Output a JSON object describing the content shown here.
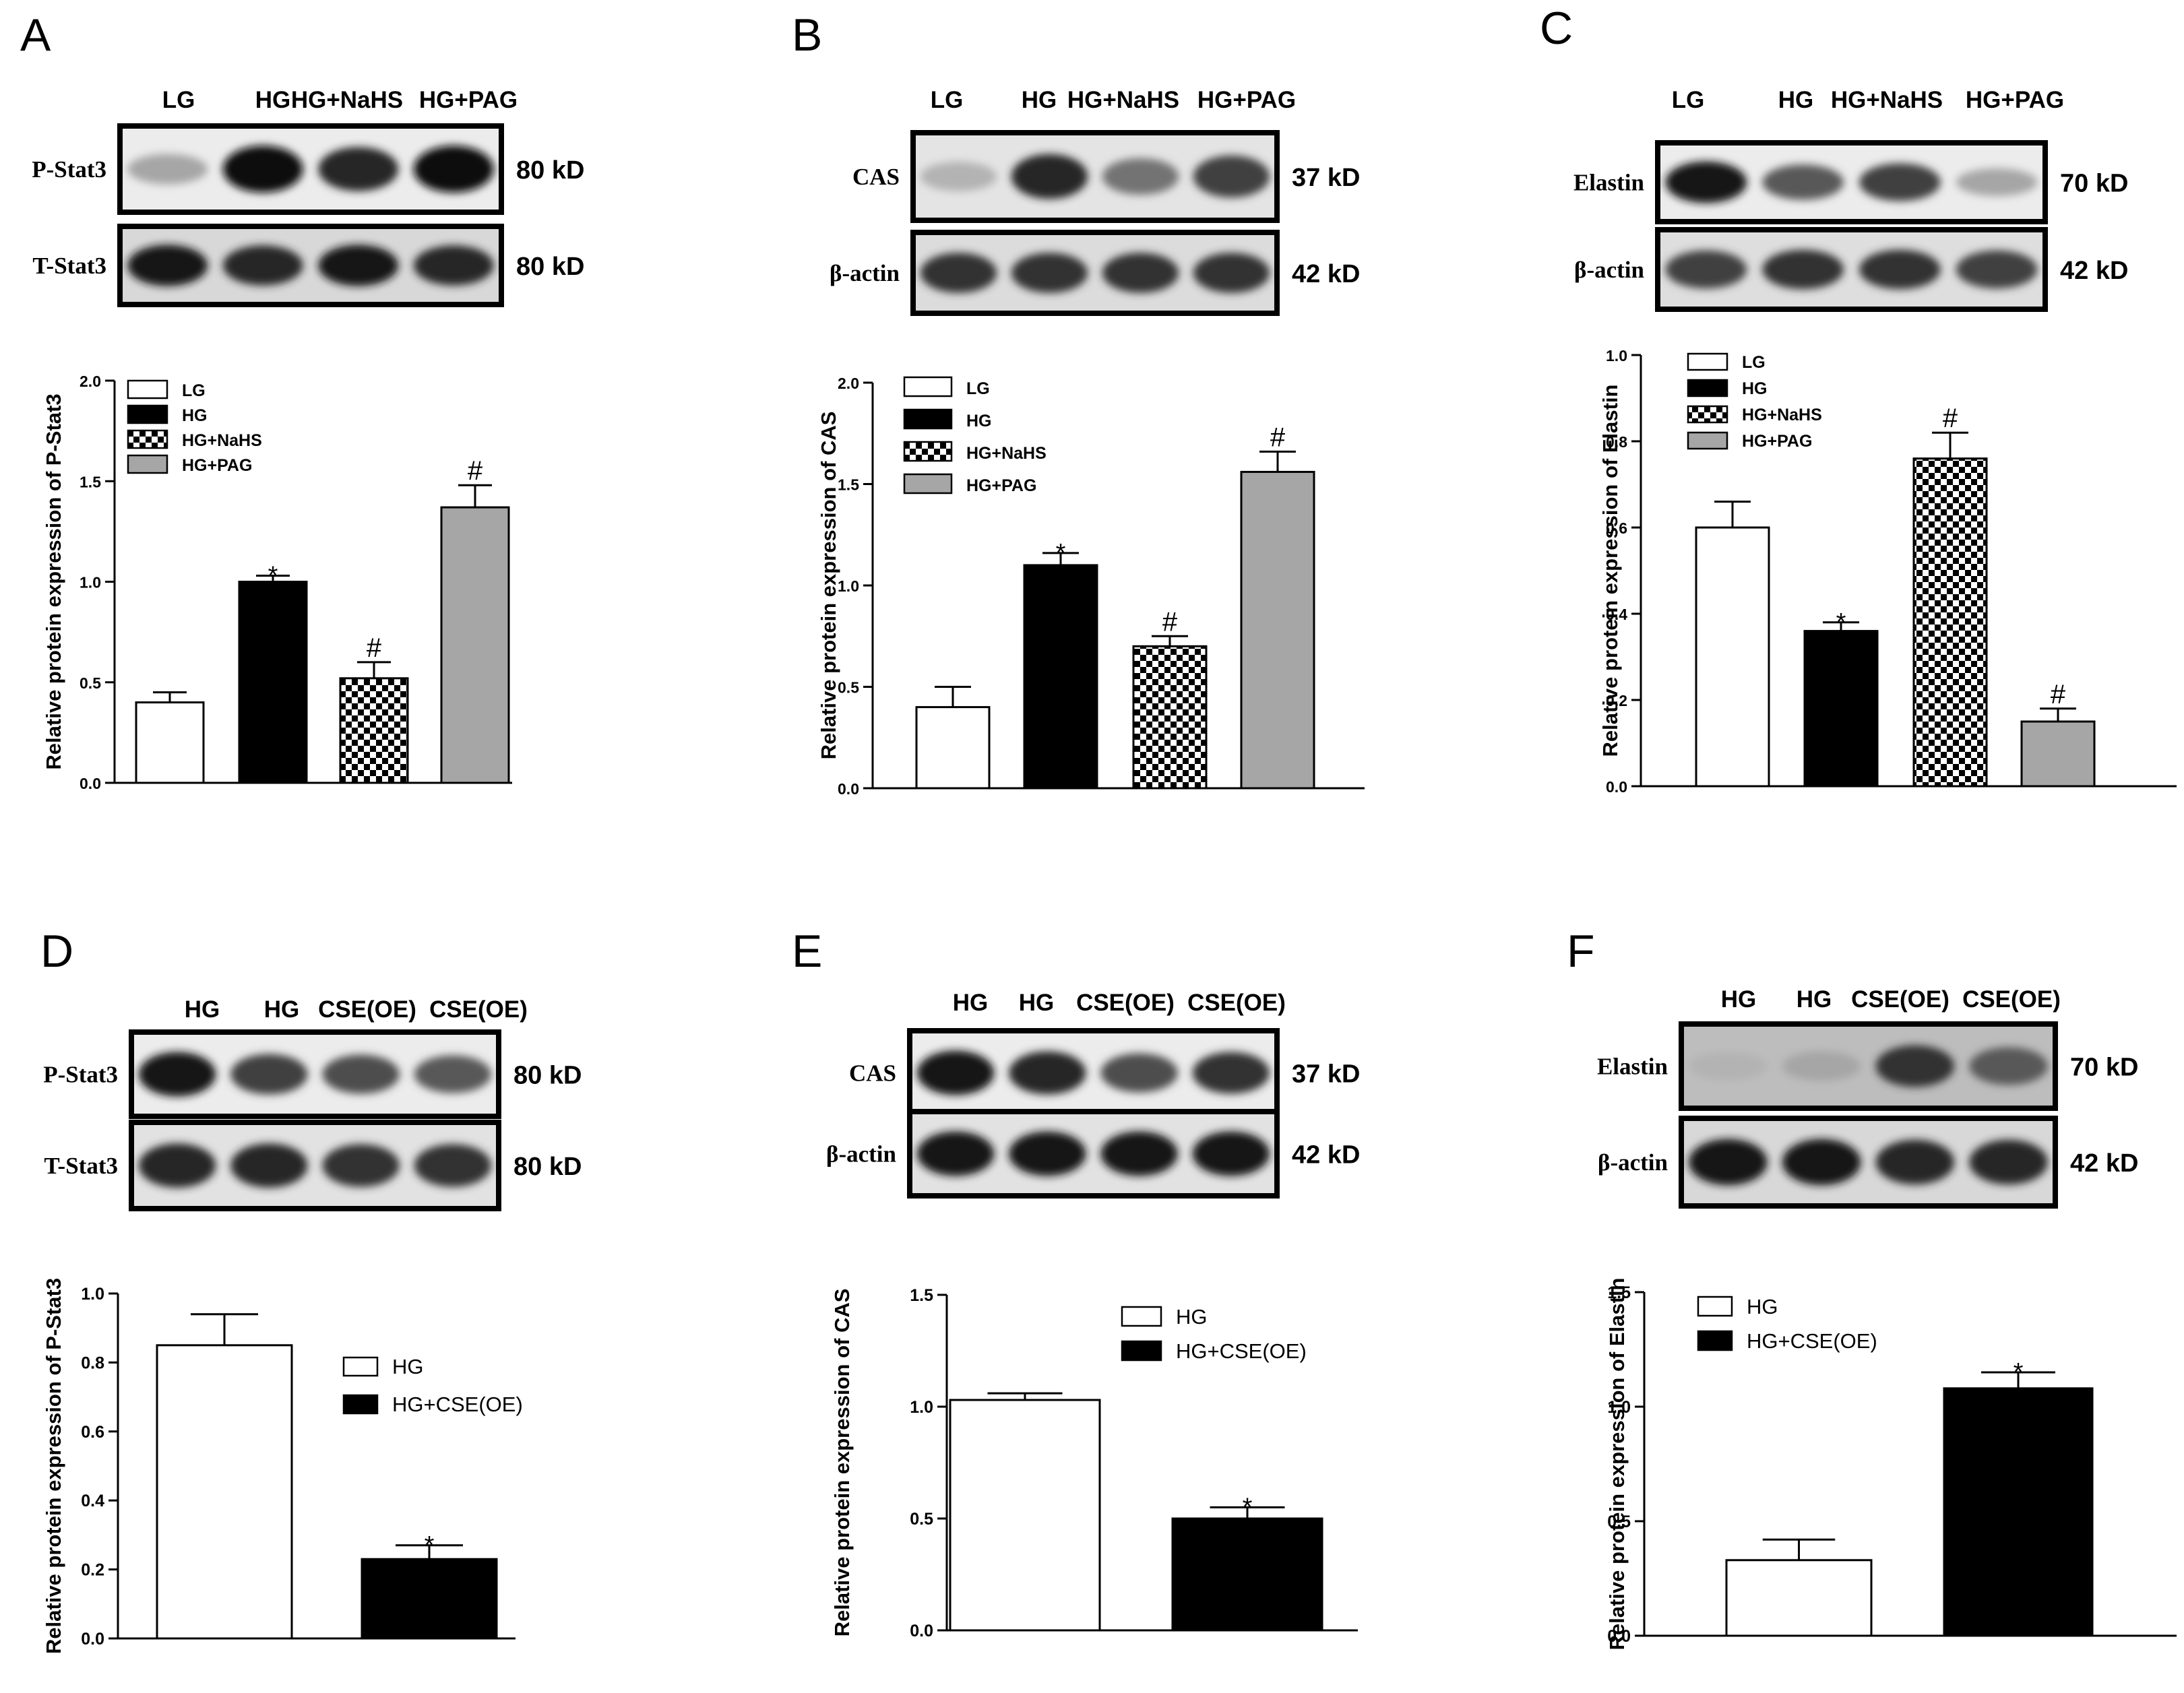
{
  "panels": [
    {
      "letter": "A",
      "blot": {
        "lanes": [
          "LG",
          "HG",
          "HG+NaHS",
          "HG+PAG"
        ],
        "strips": [
          {
            "label": "P-Stat3",
            "size": "80 kD",
            "intensity": [
              0.35,
              0.95,
              0.85,
              0.95
            ],
            "bg": "#ececec"
          },
          {
            "label": "T-Stat3",
            "size": "80 kD",
            "intensity": [
              0.9,
              0.85,
              0.9,
              0.85
            ],
            "bg": "#d8d8d8"
          }
        ]
      },
      "chart_data": {
        "type": "bar",
        "categories": [
          "LG",
          "HG",
          "HG+NaHS",
          "HG+PAG"
        ],
        "values": [
          0.4,
          1.0,
          0.52,
          1.37
        ],
        "errors": [
          0.05,
          0.03,
          0.08,
          0.11
        ],
        "significance": [
          "",
          "*",
          "#",
          "#"
        ],
        "fills": [
          "white",
          "black",
          "checker",
          "gray"
        ],
        "ylabel": "Relative protein expression of P-Stat3",
        "ylim": [
          0,
          2.0
        ],
        "yticks": [
          "0.0",
          "0.5",
          "1.0",
          "1.5",
          "2.0"
        ],
        "legend_position": "top-left"
      }
    },
    {
      "letter": "B",
      "blot": {
        "lanes": [
          "LG",
          "HG",
          "HG+NaHS",
          "HG+PAG"
        ],
        "strips": [
          {
            "label": "CAS",
            "size": "37 kD",
            "intensity": [
              0.3,
              0.85,
              0.55,
              0.75
            ],
            "bg": "#e4e4e4"
          },
          {
            "label": "β-actin",
            "size": "42 kD",
            "intensity": [
              0.8,
              0.8,
              0.8,
              0.8
            ],
            "bg": "#dcdcdc"
          }
        ]
      },
      "chart_data": {
        "type": "bar",
        "categories": [
          "LG",
          "HG",
          "HG+NaHS",
          "HG+PAG"
        ],
        "values": [
          0.4,
          1.1,
          0.7,
          1.56
        ],
        "errors": [
          0.1,
          0.06,
          0.05,
          0.1
        ],
        "significance": [
          "",
          "*",
          "#",
          "#"
        ],
        "fills": [
          "white",
          "black",
          "checker",
          "gray"
        ],
        "ylabel": "Relative protein expression of CAS",
        "ylim": [
          0,
          2.0
        ],
        "yticks": [
          "0.0",
          "0.5",
          "1.0",
          "1.5",
          "2.0"
        ],
        "legend_position": "top-left"
      }
    },
    {
      "letter": "C",
      "blot": {
        "lanes": [
          "LG",
          "HG",
          "HG+NaHS",
          "HG+PAG"
        ],
        "strips": [
          {
            "label": "Elastin",
            "size": "70 kD",
            "intensity": [
              0.9,
              0.65,
              0.75,
              0.35
            ],
            "bg": "#ececec"
          },
          {
            "label": "β-actin",
            "size": "42 kD",
            "intensity": [
              0.75,
              0.8,
              0.8,
              0.75
            ],
            "bg": "#dedede"
          }
        ]
      },
      "chart_data": {
        "type": "bar",
        "categories": [
          "LG",
          "HG",
          "HG+NaHS",
          "HG+PAG"
        ],
        "values": [
          0.6,
          0.36,
          0.76,
          0.15
        ],
        "errors": [
          0.06,
          0.02,
          0.06,
          0.03
        ],
        "significance": [
          "",
          "*",
          "#",
          "#"
        ],
        "fills": [
          "white",
          "black",
          "checker",
          "gray"
        ],
        "ylabel": "Relative protein expression of Elastin",
        "ylim": [
          0,
          1.0
        ],
        "yticks": [
          "0.0",
          "0.2",
          "0.4",
          "0.6",
          "0.8",
          "1.0"
        ],
        "legend_position": "top-left"
      }
    },
    {
      "letter": "D",
      "blot": {
        "lanes": [
          "HG",
          "HG",
          "CSE(OE)",
          "CSE(OE)"
        ],
        "strips": [
          {
            "label": "P-Stat3",
            "size": "80 kD",
            "intensity": [
              0.9,
              0.75,
              0.7,
              0.65
            ],
            "bg": "#ececec"
          },
          {
            "label": "T-Stat3",
            "size": "80 kD",
            "intensity": [
              0.85,
              0.85,
              0.8,
              0.8
            ],
            "bg": "#e2e2e2"
          }
        ]
      },
      "chart_data": {
        "type": "bar",
        "categories": [
          "HG",
          "HG+CSE(OE)"
        ],
        "values": [
          0.85,
          0.23
        ],
        "errors": [
          0.09,
          0.04
        ],
        "significance": [
          "",
          "*"
        ],
        "fills": [
          "white",
          "black"
        ],
        "ylabel": "Relative protein expression of P-Stat3",
        "ylim": [
          0,
          1.0
        ],
        "yticks": [
          "0.0",
          "0.2",
          "0.4",
          "0.6",
          "0.8",
          "1.0"
        ],
        "legend_position": "right"
      }
    },
    {
      "letter": "E",
      "blot": {
        "lanes": [
          "HG",
          "HG",
          "CSE(OE)",
          "CSE(OE)"
        ],
        "strips": [
          {
            "label": "CAS",
            "size": "37 kD",
            "intensity": [
              0.9,
              0.85,
              0.7,
              0.8
            ],
            "bg": "#ececec"
          },
          {
            "label": "β-actin",
            "size": "42 kD",
            "intensity": [
              0.9,
              0.9,
              0.9,
              0.9
            ],
            "bg": "#e2e2e2"
          }
        ]
      },
      "chart_data": {
        "type": "bar",
        "categories": [
          "HG",
          "HG+CSE(OE)"
        ],
        "values": [
          1.03,
          0.5
        ],
        "errors": [
          0.03,
          0.05
        ],
        "significance": [
          "",
          "*"
        ],
        "fills": [
          "white",
          "black"
        ],
        "ylabel": "Relative protein expression of CAS",
        "ylim": [
          0,
          1.5
        ],
        "yticks": [
          "0.0",
          "0.5",
          "1.0",
          "1.5"
        ],
        "legend_position": "top-right"
      }
    },
    {
      "letter": "F",
      "blot": {
        "lanes": [
          "HG",
          "HG",
          "CSE(OE)",
          "CSE(OE)"
        ],
        "strips": [
          {
            "label": "Elastin",
            "size": "70 kD",
            "intensity": [
              0.3,
              0.35,
              0.8,
              0.65
            ],
            "bg": "#bdbdbd"
          },
          {
            "label": "β-actin",
            "size": "42 kD",
            "intensity": [
              0.9,
              0.9,
              0.85,
              0.85
            ],
            "bg": "#d8d8d8"
          }
        ]
      },
      "chart_data": {
        "type": "bar",
        "categories": [
          "HG",
          "HG+CSE(OE)"
        ],
        "values": [
          0.33,
          1.08
        ],
        "errors": [
          0.09,
          0.07
        ],
        "significance": [
          "",
          "*"
        ],
        "fills": [
          "white",
          "black"
        ],
        "ylabel": "Relative protein expression of Elastin",
        "ylim": [
          0,
          1.5
        ],
        "yticks": [
          "0.0",
          "0.5",
          "1.0",
          "1.5"
        ],
        "legend_position": "top-left"
      }
    }
  ],
  "legend_labels_top": [
    "LG",
    "HG",
    "HG+NaHS",
    "HG+PAG"
  ],
  "legend_labels_bottom": [
    "HG",
    "HG+CSE(OE)"
  ],
  "colors": {
    "gray_bar": "#a6a6a6",
    "black": "#000000",
    "white": "#ffffff"
  }
}
